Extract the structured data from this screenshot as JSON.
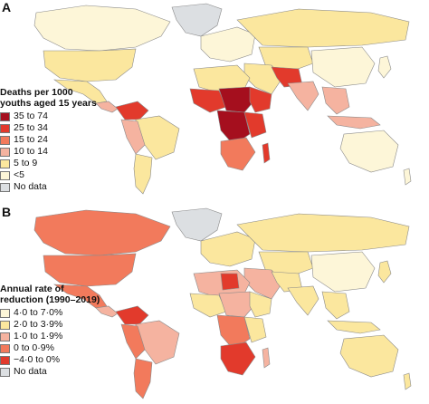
{
  "panel_a": {
    "letter": "A",
    "legend_title": "Deaths per 1000 youths aged 15 years",
    "legend": [
      {
        "label": "35 to 74",
        "color": "#a50f1e"
      },
      {
        "label": "25 to 34",
        "color": "#e23a2c"
      },
      {
        "label": "15 to 24",
        "color": "#f27a5c"
      },
      {
        "label": "10 to 14",
        "color": "#f5b3a0"
      },
      {
        "label": "5 to 9",
        "color": "#fbe79e"
      },
      {
        "label": "<5",
        "color": "#fdf6d8"
      },
      {
        "label": "No data",
        "color": "#dcdfe2"
      }
    ]
  },
  "panel_b": {
    "letter": "B",
    "legend_title": "Annual rate of reduction (1990–2019)",
    "legend": [
      {
        "label": "4·0 to 7·0%",
        "color": "#fdf6d8"
      },
      {
        "label": "2·0 to 3·9%",
        "color": "#fbe79e"
      },
      {
        "label": "1·0 to 1·9%",
        "color": "#f5b3a0"
      },
      {
        "label": "0 to 0·9%",
        "color": "#f27a5c"
      },
      {
        "label": "−4·0 to 0%",
        "color": "#e23a2c"
      },
      {
        "label": "No data",
        "color": "#dcdfe2"
      }
    ]
  }
}
